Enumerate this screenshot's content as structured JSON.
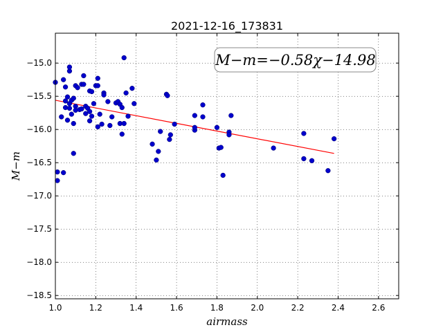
{
  "chart_data": {
    "type": "scatter",
    "title": "2021-12-16_173831",
    "xlabel": "airmass",
    "ylabel": "M−m",
    "xlim": [
      1.0,
      2.7
    ],
    "ylim": [
      -18.55,
      -14.55
    ],
    "y_inverted": true,
    "x_ticks": [
      "1.0",
      "1.2",
      "1.4",
      "1.6",
      "1.8",
      "2.0",
      "2.2",
      "2.4",
      "2.6"
    ],
    "y_ticks": [
      "−15.0",
      "−15.5",
      "−16.0",
      "−16.5",
      "−17.0",
      "−17.5",
      "−18.0",
      "−18.5"
    ],
    "grid": true,
    "annotation": "M−m=−0.58χ−14.98",
    "colors": {
      "points": "#0000cc",
      "fit": "#ff0000"
    },
    "fit": {
      "slope": -0.58,
      "intercept": -14.98,
      "x_range": [
        1.0,
        2.38
      ]
    },
    "points": [
      [
        1.0,
        -15.29
      ],
      [
        1.01,
        -16.64
      ],
      [
        1.01,
        -16.77
      ],
      [
        1.03,
        -15.81
      ],
      [
        1.04,
        -15.25
      ],
      [
        1.04,
        -16.65
      ],
      [
        1.05,
        -15.57
      ],
      [
        1.05,
        -15.67
      ],
      [
        1.05,
        -15.36
      ],
      [
        1.06,
        -15.51
      ],
      [
        1.06,
        -15.86
      ],
      [
        1.07,
        -15.12
      ],
      [
        1.07,
        -15.06
      ],
      [
        1.07,
        -15.61
      ],
      [
        1.07,
        -15.68
      ],
      [
        1.08,
        -15.56
      ],
      [
        1.08,
        -15.77
      ],
      [
        1.09,
        -15.91
      ],
      [
        1.09,
        -16.36
      ],
      [
        1.09,
        -15.53
      ],
      [
        1.1,
        -15.34
      ],
      [
        1.1,
        -15.65
      ],
      [
        1.1,
        -15.71
      ],
      [
        1.11,
        -15.37
      ],
      [
        1.12,
        -15.7
      ],
      [
        1.13,
        -15.32
      ],
      [
        1.13,
        -15.69
      ],
      [
        1.14,
        -15.19
      ],
      [
        1.14,
        -15.32
      ],
      [
        1.15,
        -15.65
      ],
      [
        1.15,
        -15.76
      ],
      [
        1.16,
        -15.68
      ],
      [
        1.17,
        -15.42
      ],
      [
        1.17,
        -15.73
      ],
      [
        1.17,
        -15.87
      ],
      [
        1.18,
        -15.43
      ],
      [
        1.18,
        -15.8
      ],
      [
        1.19,
        -15.61
      ],
      [
        1.2,
        -15.34
      ],
      [
        1.21,
        -15.34
      ],
      [
        1.21,
        -15.23
      ],
      [
        1.21,
        -15.96
      ],
      [
        1.22,
        -15.77
      ],
      [
        1.23,
        -15.92
      ],
      [
        1.24,
        -15.45
      ],
      [
        1.24,
        -15.48
      ],
      [
        1.26,
        -15.58
      ],
      [
        1.27,
        -15.94
      ],
      [
        1.28,
        -15.81
      ],
      [
        1.3,
        -15.6
      ],
      [
        1.31,
        -15.58
      ],
      [
        1.32,
        -15.62
      ],
      [
        1.32,
        -15.91
      ],
      [
        1.33,
        -15.67
      ],
      [
        1.33,
        -16.07
      ],
      [
        1.34,
        -15.91
      ],
      [
        1.34,
        -14.92
      ],
      [
        1.35,
        -15.45
      ],
      [
        1.36,
        -15.8
      ],
      [
        1.38,
        -15.38
      ],
      [
        1.39,
        -15.61
      ],
      [
        1.48,
        -16.22
      ],
      [
        1.5,
        -16.46
      ],
      [
        1.51,
        -16.33
      ],
      [
        1.52,
        -16.03
      ],
      [
        1.55,
        -15.47
      ],
      [
        1.555,
        -15.49
      ],
      [
        1.565,
        -16.15
      ],
      [
        1.57,
        -16.08
      ],
      [
        1.59,
        -15.92
      ],
      [
        1.69,
        -16.01
      ],
      [
        1.69,
        -15.97
      ],
      [
        1.69,
        -15.79
      ],
      [
        1.73,
        -15.81
      ],
      [
        1.73,
        -15.63
      ],
      [
        1.8,
        -15.97
      ],
      [
        1.81,
        -16.28
      ],
      [
        1.82,
        -16.27
      ],
      [
        1.83,
        -16.69
      ],
      [
        1.86,
        -16.04
      ],
      [
        1.86,
        -16.08
      ],
      [
        1.87,
        -15.79
      ],
      [
        2.08,
        -16.28
      ],
      [
        2.23,
        -16.06
      ],
      [
        2.23,
        -16.44
      ],
      [
        2.27,
        -16.47
      ],
      [
        2.35,
        -16.62
      ],
      [
        2.38,
        -16.14
      ]
    ]
  }
}
